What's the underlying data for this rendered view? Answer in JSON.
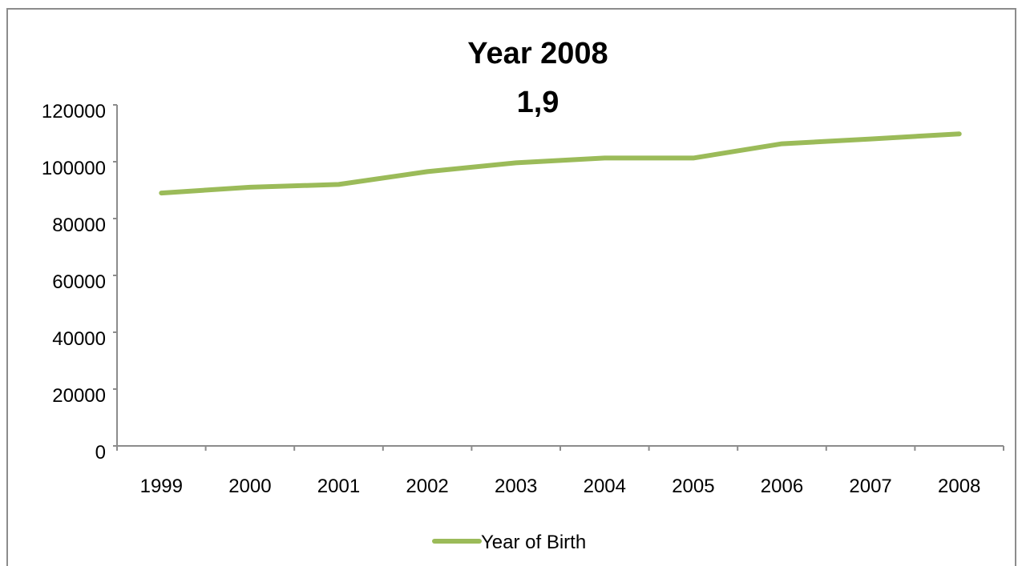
{
  "chart_data": {
    "type": "line",
    "title": "Year 2008",
    "subtitle": "1,9",
    "xlabel": "",
    "ylabel": "",
    "x": [
      "1999",
      "2000",
      "2001",
      "2002",
      "2003",
      "2004",
      "2005",
      "2006",
      "2007",
      "2008"
    ],
    "series": [
      {
        "name": "Year of Birth",
        "color": "#9bbb59",
        "values": [
          89000,
          91000,
          92000,
          96500,
          99600,
          101300,
          101300,
          106300,
          108000,
          109800
        ]
      }
    ],
    "ylim": [
      0,
      120000
    ],
    "yticks": [
      "0",
      "20000",
      "40000",
      "60000",
      "80000",
      "100000",
      "120000"
    ],
    "grid": false,
    "legend": "bottom"
  }
}
